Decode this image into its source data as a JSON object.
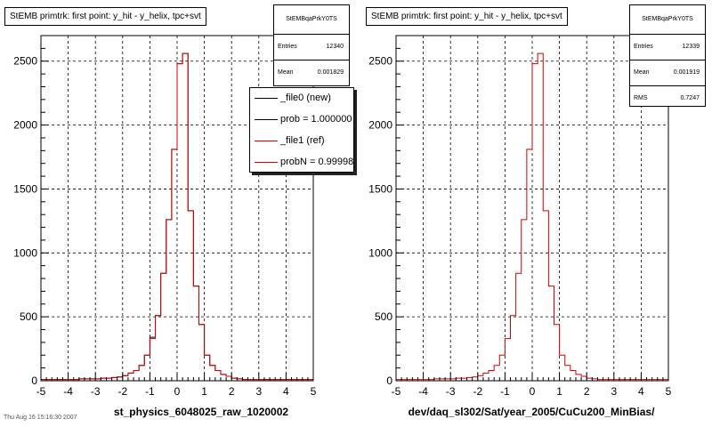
{
  "footer_text": "Thu Aug 16 15:16:30 2007",
  "chart_data": [
    {
      "type": "histogram",
      "title": "StEMB primtrk: first point: y_hit - y_helix, tpc+svt",
      "xlabel": "st_physics_6048025_raw_1020002",
      "xlim": [
        -5,
        5
      ],
      "ylim": [
        0,
        2700
      ],
      "x_ticks": [
        "-5",
        "-4",
        "-3",
        "-2",
        "-1",
        "0",
        "1",
        "2",
        "3",
        "4",
        "5"
      ],
      "y_ticks": [
        "0",
        "500",
        "1000",
        "1500",
        "2000",
        "2500"
      ],
      "grid": true,
      "bin_edges_start": -5,
      "bin_width": 0.2,
      "stats": {
        "name": "StEMBqaPrkY0TS",
        "entries_label": "Entries",
        "entries": "12340",
        "mean_label": "Mean",
        "mean": "0.001829"
      },
      "legend": {
        "placement": "right",
        "entries": [
          {
            "label": "_file0 (new)",
            "color": "#000000"
          },
          {
            "label": "prob = 1.000000",
            "color": "#000000"
          },
          {
            "label": "_file1 (ref)",
            "color": "#d40000"
          },
          {
            "label": "probN = 0.999980",
            "color": "#d40000"
          }
        ]
      },
      "series": [
        {
          "color": "#000000",
          "values": [
            10,
            10,
            10,
            10,
            10,
            10,
            10,
            15,
            15,
            15,
            15,
            20,
            20,
            25,
            30,
            40,
            60,
            80,
            120,
            200,
            340,
            510,
            840,
            1260,
            1810,
            2480,
            2560,
            1330,
            740,
            440,
            200,
            120,
            80,
            50,
            35,
            20,
            15,
            10,
            10,
            10,
            10,
            10,
            10,
            10,
            10,
            10,
            10,
            10,
            10,
            10
          ]
        },
        {
          "color": "#d40000",
          "values": [
            10,
            10,
            10,
            10,
            10,
            10,
            10,
            15,
            15,
            15,
            15,
            20,
            20,
            25,
            30,
            40,
            60,
            80,
            120,
            200,
            330,
            510,
            840,
            1260,
            1810,
            2480,
            2560,
            1330,
            740,
            440,
            200,
            120,
            80,
            50,
            35,
            20,
            15,
            10,
            10,
            10,
            10,
            10,
            10,
            10,
            10,
            10,
            10,
            10,
            10,
            10
          ]
        }
      ]
    },
    {
      "type": "histogram",
      "title": "StEMB primtrk: first point: y_hit - y_helix, tpc+svt",
      "xlabel": "dev/daq_sl302/Sat/year_2005/CuCu200_MinBias/",
      "xlim": [
        -5,
        5
      ],
      "ylim": [
        0,
        2700
      ],
      "x_ticks": [
        "-5",
        "-4",
        "-3",
        "-2",
        "-1",
        "0",
        "1",
        "2",
        "3",
        "4",
        "5"
      ],
      "y_ticks": [
        "0",
        "500",
        "1000",
        "1500",
        "2000",
        "2500"
      ],
      "grid": true,
      "bin_edges_start": -5,
      "bin_width": 0.2,
      "stats": {
        "name": "StEMBqaPrkY0TS",
        "entries_label": "Entries",
        "entries": "12339",
        "mean_label": "Mean",
        "mean": "0.001919",
        "rms_label": "RMS",
        "rms": "0.7247"
      },
      "series": [
        {
          "color": "#d40000",
          "values": [
            10,
            10,
            10,
            10,
            10,
            10,
            10,
            15,
            15,
            15,
            15,
            20,
            20,
            25,
            30,
            40,
            60,
            80,
            120,
            200,
            330,
            510,
            840,
            1260,
            1810,
            2480,
            2560,
            1330,
            740,
            440,
            200,
            120,
            80,
            50,
            35,
            20,
            15,
            10,
            10,
            10,
            10,
            10,
            10,
            10,
            10,
            10,
            10,
            10,
            10,
            10
          ]
        }
      ]
    }
  ]
}
